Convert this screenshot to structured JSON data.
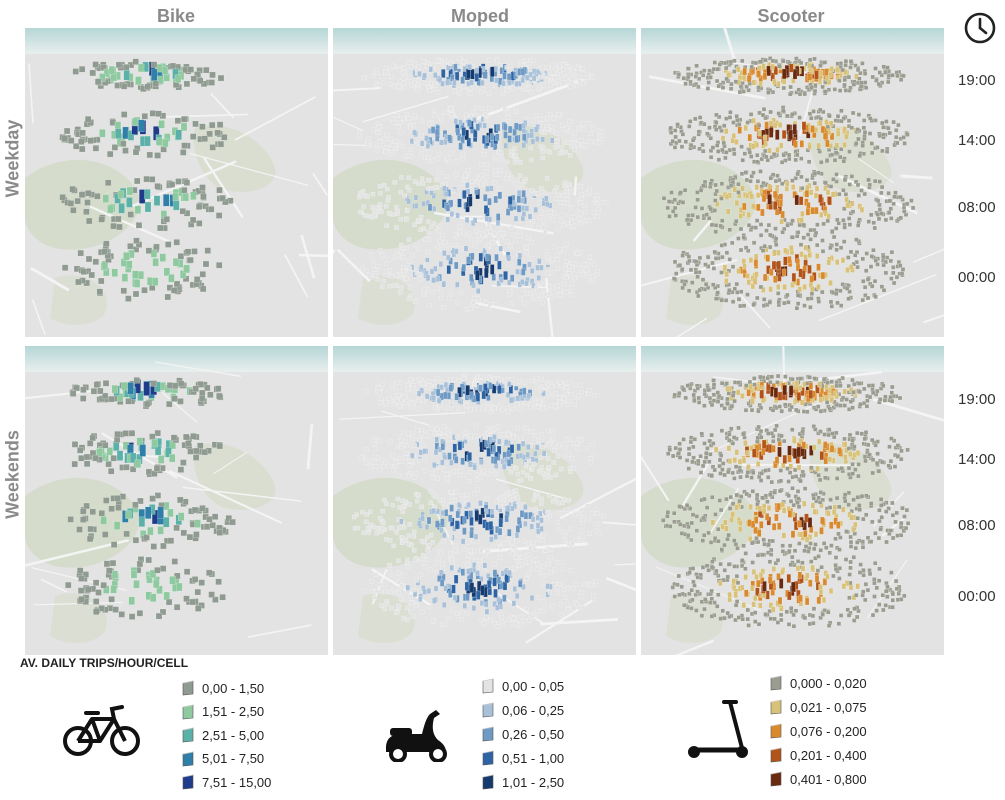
{
  "columns": {
    "bike": "Bike",
    "moped": "Moped",
    "scooter": "Scooter"
  },
  "rows": {
    "weekday": "Weekday",
    "weekends": "Weekends"
  },
  "times": [
    "19:00",
    "14:00",
    "08:00",
    "00:00"
  ],
  "legend": {
    "title": "AV. DAILY TRIPS/HOUR/CELL",
    "bike": [
      {
        "label": "0,00 - 1,50",
        "color": "#8f9a90"
      },
      {
        "label": "1,51 - 2,50",
        "color": "#8fc9a0"
      },
      {
        "label": "2,51 - 5,00",
        "color": "#5bb0a8"
      },
      {
        "label": "5,01 - 7,50",
        "color": "#2f7fa8"
      },
      {
        "label": "7,51 - 15,00",
        "color": "#1f3c8a"
      }
    ],
    "moped": [
      {
        "label": "0,00 - 0,05",
        "color": "#e3e3e3"
      },
      {
        "label": "0,06 - 0,25",
        "color": "#a9c1d8"
      },
      {
        "label": "0,26 - 0,50",
        "color": "#6e9ac4"
      },
      {
        "label": "0,51 - 1,00",
        "color": "#2e64a3"
      },
      {
        "label": "1,01 - 2,50",
        "color": "#143a6e"
      }
    ],
    "scooter": [
      {
        "label": "0,000 - 0,020",
        "color": "#9a9c90"
      },
      {
        "label": "0,021 - 0,075",
        "color": "#d8c27a"
      },
      {
        "label": "0,076 - 0,200",
        "color": "#d98a2e"
      },
      {
        "label": "0,201 - 0,400",
        "color": "#b2541a"
      },
      {
        "label": "0,401 - 0,800",
        "color": "#6a2a10"
      }
    ]
  },
  "icons": {
    "clock": "clock-icon",
    "bike": "bicycle-icon",
    "moped": "moped-icon",
    "scooter": "kick-scooter-icon"
  }
}
